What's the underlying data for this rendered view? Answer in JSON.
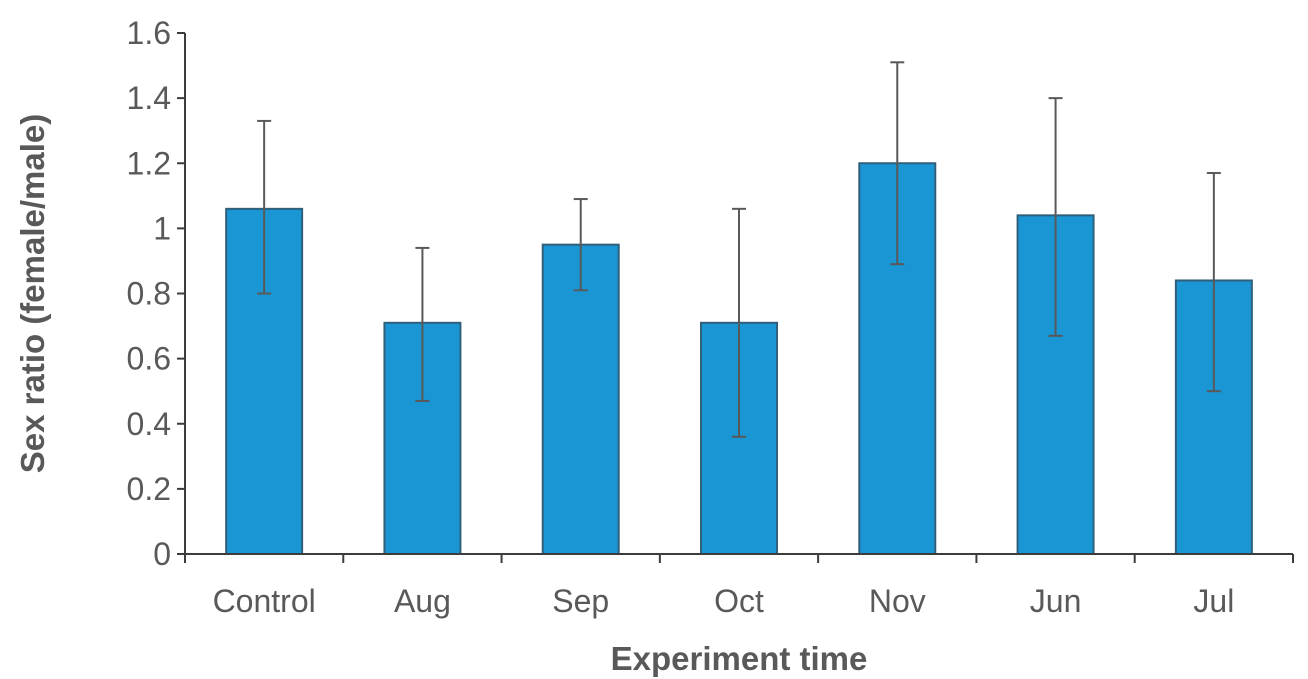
{
  "chart_data": {
    "type": "bar",
    "categories": [
      "Control",
      "Aug",
      "Sep",
      "Oct",
      "Nov",
      "Jun",
      "Jul"
    ],
    "values": [
      1.06,
      0.71,
      0.95,
      0.71,
      1.2,
      1.04,
      0.84
    ],
    "error_high": [
      1.33,
      0.94,
      1.09,
      1.06,
      1.51,
      1.4,
      1.17
    ],
    "error_low": [
      0.8,
      0.47,
      0.81,
      0.36,
      0.89,
      0.67,
      0.5
    ],
    "xlabel": "Experiment time",
    "ylabel": "Sex ratio (female/male)",
    "ylim": [
      0,
      1.6
    ],
    "yticks": [
      "0",
      "0.2",
      "0.4",
      "0.6",
      "0.8",
      "1",
      "1.2",
      "1.4",
      "1.6"
    ],
    "bar_color": "#1a96d4",
    "grid": false,
    "legend": "none"
  }
}
